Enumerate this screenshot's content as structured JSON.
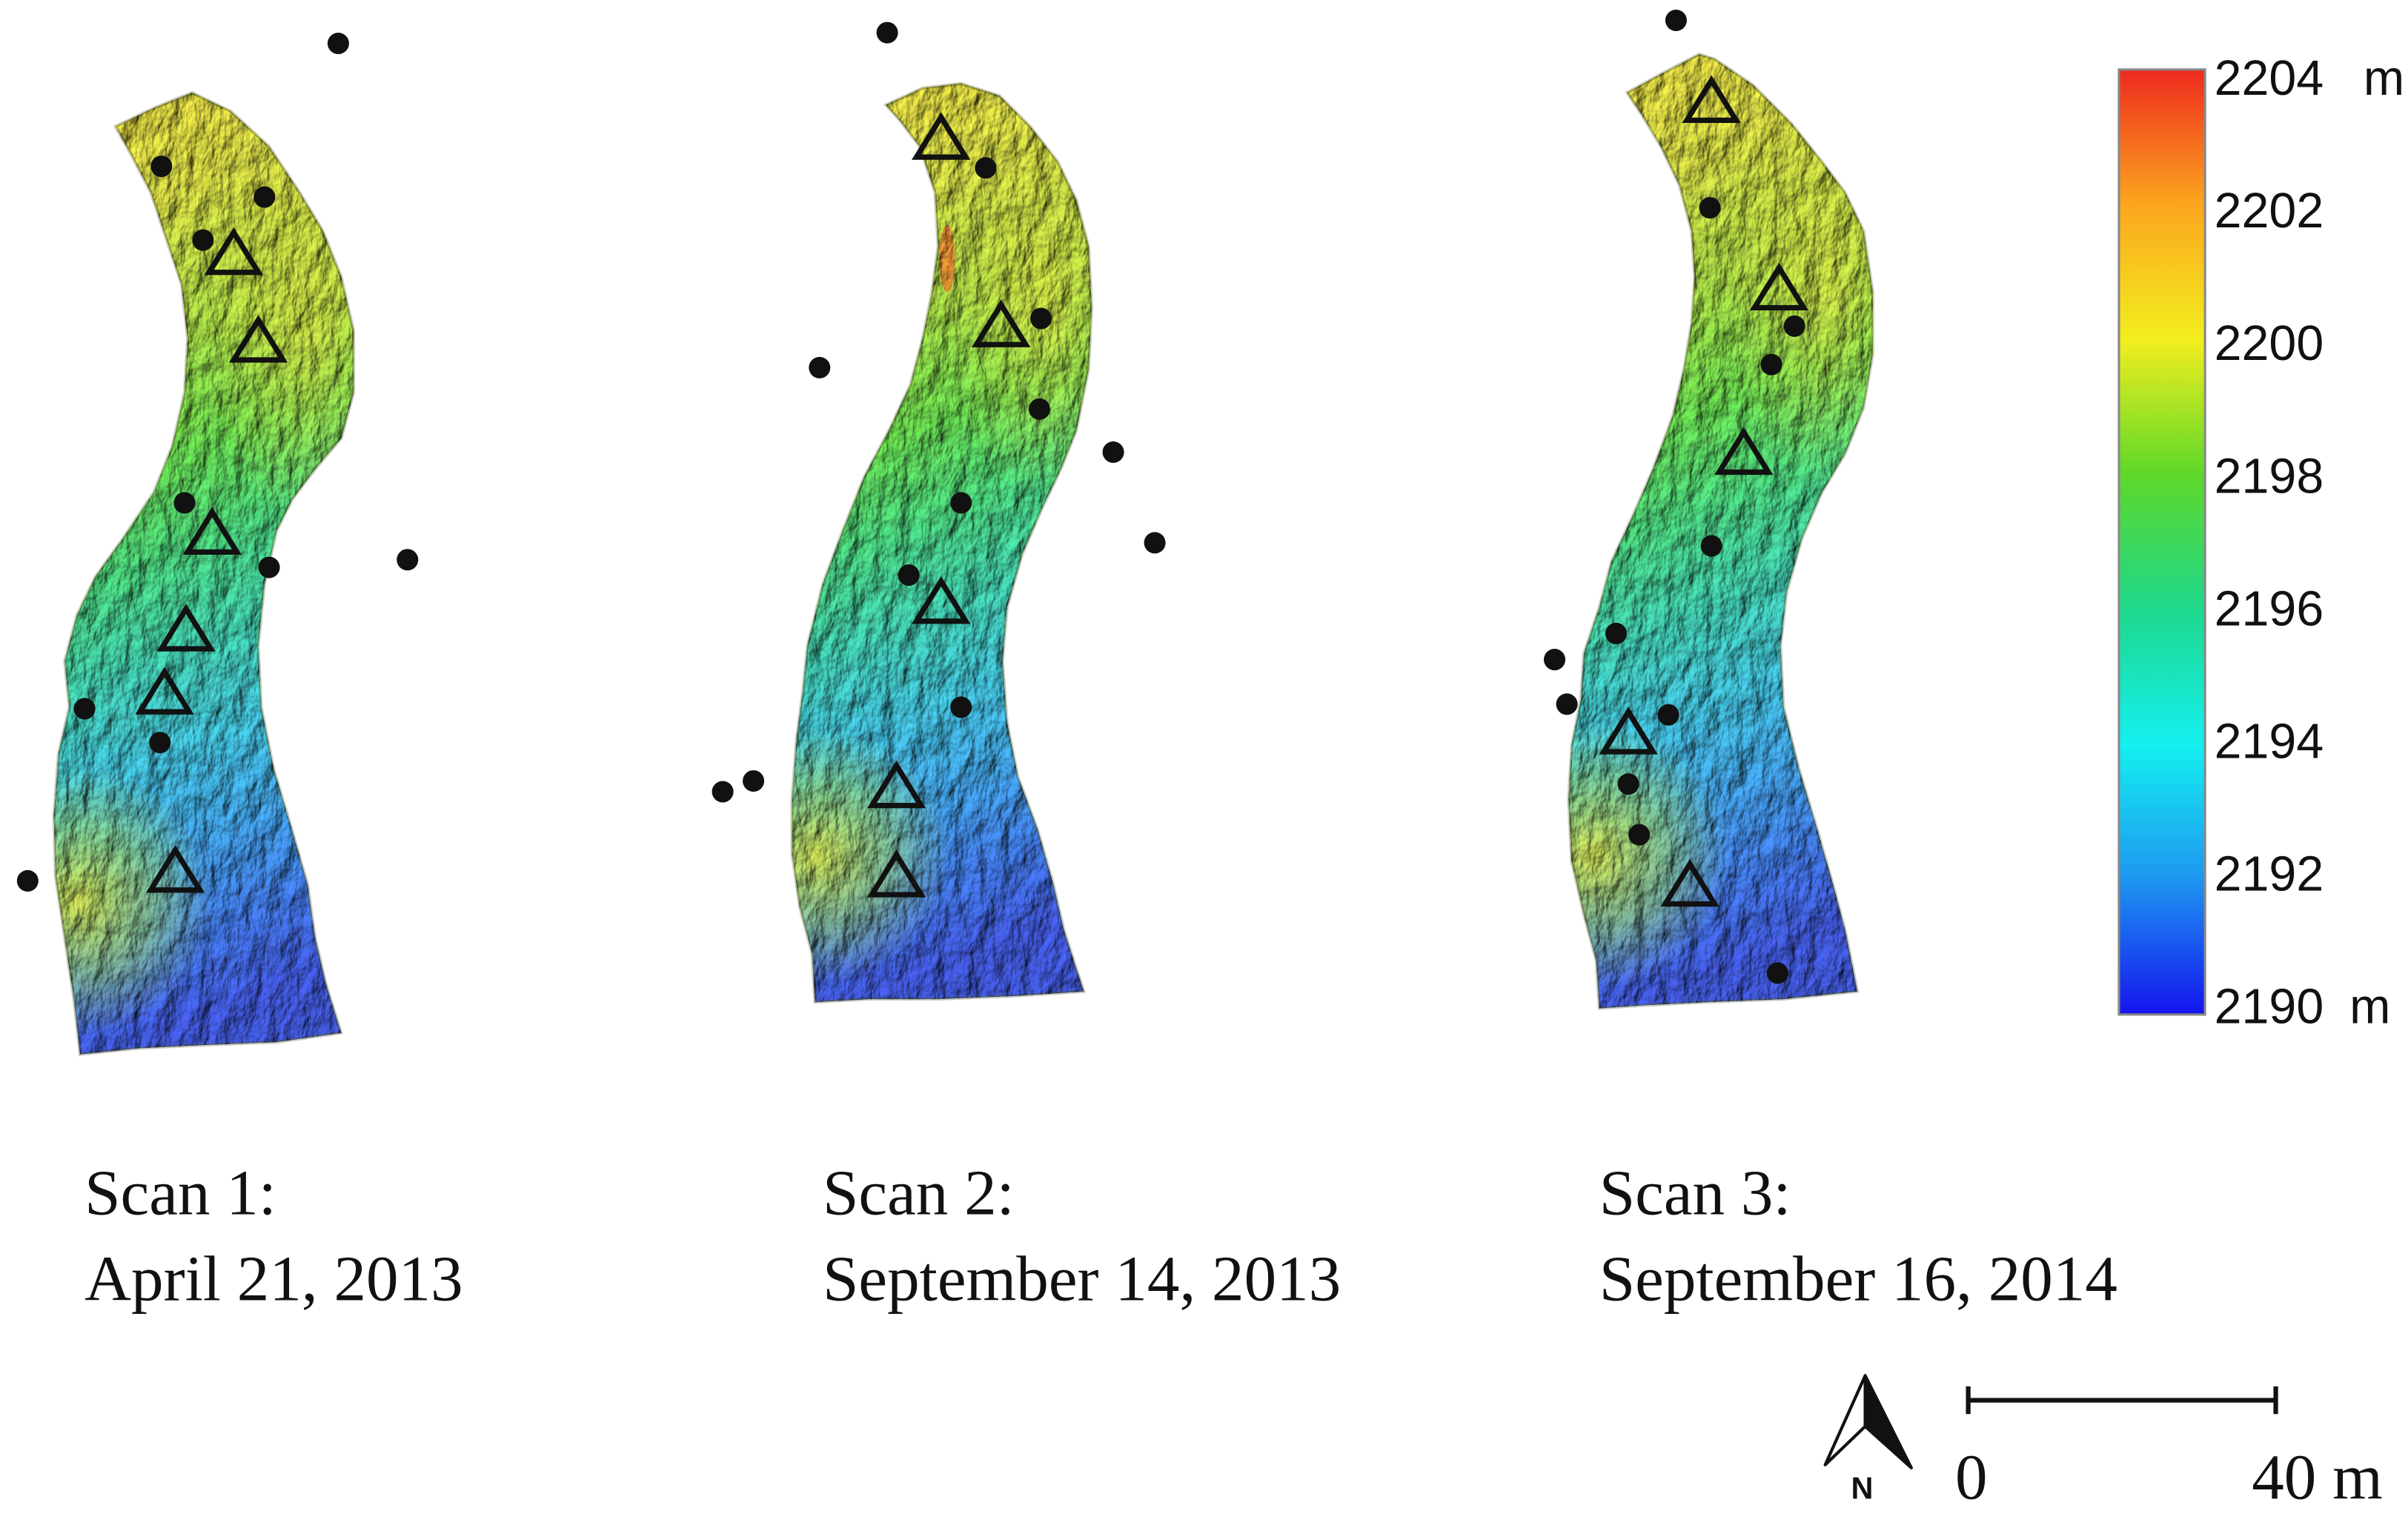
{
  "panels": [
    {
      "label": "Scan 1:",
      "date": "April 21, 2013"
    },
    {
      "label": "Scan 2:",
      "date": "September 14, 2013"
    },
    {
      "label": "Scan 3:",
      "date": "September 16, 2014"
    }
  ],
  "colorbar": {
    "ticks": [
      "2204",
      "2202",
      "2200",
      "2198",
      "2196",
      "2194",
      "2192",
      "2190"
    ],
    "unit": "m",
    "colormap": [
      "#ee2a1e",
      "#fba61e",
      "#f2ee1e",
      "#5ed82a",
      "#1ed88c",
      "#14f0f0",
      "#1e96f0",
      "#1414ee"
    ]
  },
  "north_arrow": {
    "label": "N"
  },
  "scale_bar": {
    "start_label": "0",
    "end_label": "40 m"
  }
}
